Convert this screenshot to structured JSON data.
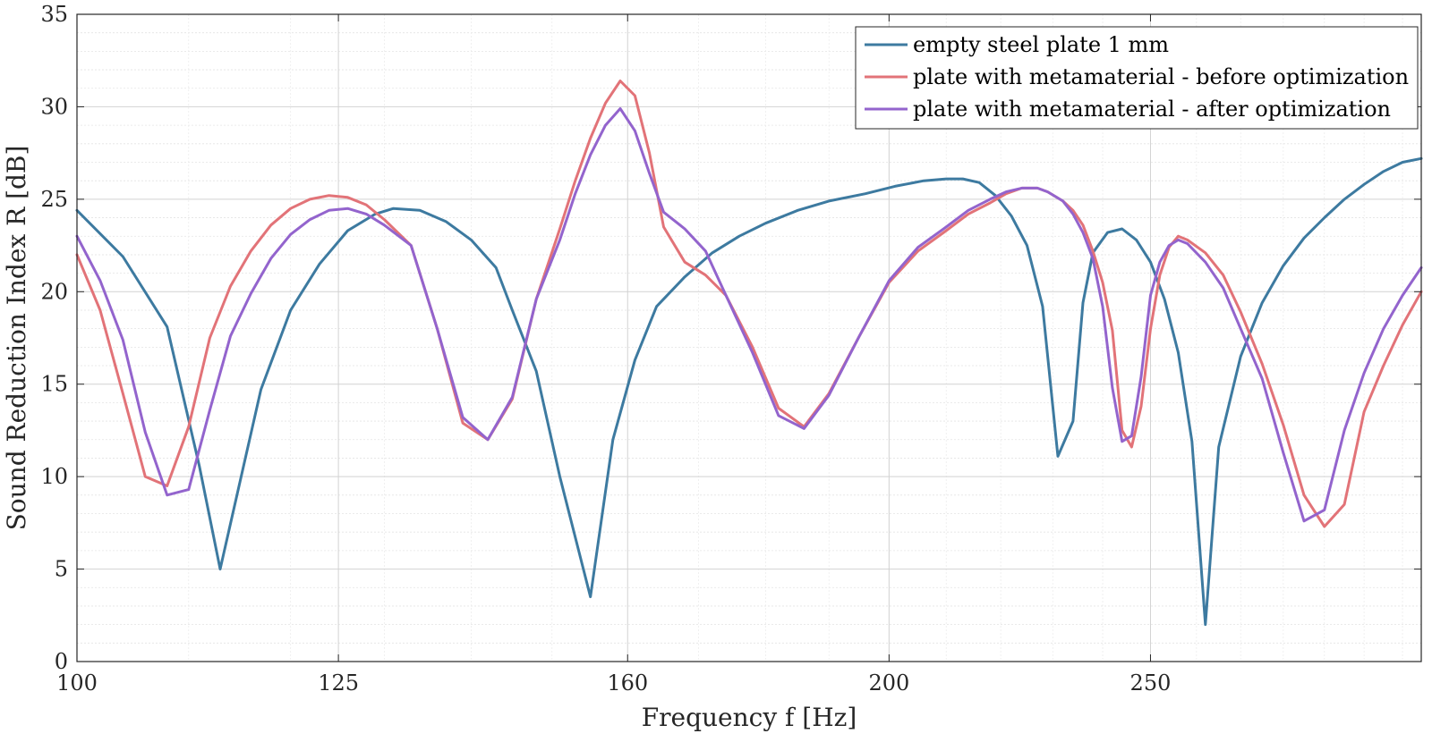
{
  "chart_data": {
    "type": "line",
    "title": "",
    "xlabel": "Frequency  f [Hz]",
    "ylabel": "Sound Reduction Index  R [dB]",
    "xscale": "log",
    "xlim": [
      100,
      315
    ],
    "ylim": [
      0,
      35
    ],
    "x_ticks": [
      100,
      125,
      160,
      200,
      250
    ],
    "x_tick_labels": [
      "100",
      "125",
      "160",
      "200",
      "250"
    ],
    "y_ticks": [
      0,
      5,
      10,
      15,
      20,
      25,
      30,
      35
    ],
    "y_tick_labels": [
      "0",
      "5",
      "10",
      "15",
      "20",
      "25",
      "30",
      "35"
    ],
    "grid": true,
    "legend_position": "top-right",
    "series": [
      {
        "name": "empty steel plate 1 mm",
        "color": "#3d7aa0",
        "x": [
          100,
          104,
          108,
          111,
          113,
          117,
          120,
          123,
          126,
          129,
          131,
          134,
          137,
          140,
          143,
          145,
          148,
          151,
          155,
          158,
          161,
          164,
          168,
          172,
          176,
          180,
          185,
          190,
          196,
          201,
          206,
          210,
          213,
          216,
          219,
          222,
          225,
          228,
          231,
          234,
          236,
          238,
          241,
          244,
          247,
          250,
          253,
          256,
          259,
          262,
          265,
          270,
          275,
          280,
          285,
          290,
          295,
          300,
          305,
          310,
          315
        ],
        "y": [
          24.4,
          21.9,
          18.1,
          10.6,
          5.0,
          14.7,
          19.0,
          21.5,
          23.3,
          24.2,
          24.5,
          24.4,
          23.8,
          22.8,
          21.3,
          19.0,
          15.7,
          10.0,
          3.5,
          12.0,
          16.3,
          19.2,
          20.8,
          22.1,
          23.0,
          23.7,
          24.4,
          24.9,
          25.3,
          25.7,
          26.0,
          26.1,
          26.1,
          25.9,
          25.2,
          24.1,
          22.5,
          19.2,
          11.1,
          13.0,
          19.4,
          22.1,
          23.2,
          23.4,
          22.8,
          21.6,
          19.6,
          16.7,
          11.9,
          2.0,
          11.6,
          16.5,
          19.4,
          21.4,
          22.9,
          24.0,
          25.0,
          25.8,
          26.5,
          27.0,
          27.2
        ]
      },
      {
        "name": "plate with metamaterial - before optimization",
        "color": "#e27378",
        "x": [
          100,
          102,
          104,
          106,
          108,
          110,
          112,
          114,
          116,
          118,
          120,
          122,
          124,
          126,
          128,
          130,
          133,
          136,
          139,
          142,
          145,
          148,
          151,
          153,
          155,
          157,
          159,
          161,
          163,
          165,
          168,
          171,
          174,
          178,
          182,
          186,
          190,
          195,
          200,
          205,
          210,
          214,
          218,
          221,
          224,
          227,
          229,
          232,
          234,
          236,
          238,
          240,
          242,
          244,
          246,
          248,
          250,
          252,
          254,
          256,
          258,
          262,
          266,
          270,
          275,
          280,
          285,
          290,
          295,
          300,
          305,
          310,
          315
        ],
        "y": [
          22.0,
          19.0,
          14.5,
          10.0,
          9.5,
          12.7,
          17.5,
          20.3,
          22.2,
          23.6,
          24.5,
          25.0,
          25.2,
          25.1,
          24.7,
          23.9,
          22.5,
          18.0,
          12.9,
          12.0,
          14.2,
          19.6,
          23.4,
          26.0,
          28.3,
          30.2,
          31.4,
          30.6,
          27.5,
          23.5,
          21.6,
          20.9,
          19.8,
          17.0,
          13.7,
          12.7,
          14.5,
          17.6,
          20.5,
          22.2,
          23.3,
          24.2,
          24.8,
          25.3,
          25.6,
          25.6,
          25.4,
          24.9,
          24.4,
          23.6,
          22.2,
          20.5,
          17.9,
          12.5,
          11.6,
          13.8,
          18.0,
          20.9,
          22.4,
          23.0,
          22.8,
          22.1,
          20.9,
          18.9,
          16.1,
          12.8,
          9.0,
          7.3,
          8.5,
          13.5,
          16.0,
          18.2,
          20.0
        ],
        "y_note": "values read off plot"
      },
      {
        "name": "plate with metamaterial - after optimization",
        "color": "#9364cd",
        "x": [
          100,
          102,
          104,
          106,
          108,
          110,
          112,
          114,
          116,
          118,
          120,
          122,
          124,
          126,
          128,
          130,
          133,
          136,
          139,
          142,
          145,
          148,
          151,
          153,
          155,
          157,
          159,
          161,
          163,
          165,
          168,
          171,
          174,
          178,
          182,
          186,
          190,
          195,
          200,
          205,
          210,
          214,
          218,
          221,
          224,
          227,
          229,
          232,
          234,
          236,
          238,
          240,
          242,
          244,
          246,
          248,
          250,
          252,
          254,
          256,
          258,
          262,
          266,
          270,
          275,
          280,
          285,
          290,
          295,
          300,
          305,
          310,
          315
        ],
        "y": [
          23.0,
          20.6,
          17.4,
          12.4,
          9.0,
          9.3,
          13.6,
          17.6,
          19.9,
          21.8,
          23.1,
          23.9,
          24.4,
          24.5,
          24.2,
          23.6,
          22.5,
          18.0,
          13.2,
          12.0,
          14.3,
          19.6,
          22.8,
          25.3,
          27.4,
          29.0,
          29.9,
          28.7,
          26.4,
          24.3,
          23.4,
          22.2,
          19.8,
          16.7,
          13.3,
          12.6,
          14.4,
          17.6,
          20.6,
          22.4,
          23.5,
          24.4,
          25.0,
          25.4,
          25.6,
          25.6,
          25.4,
          24.9,
          24.2,
          23.2,
          21.8,
          19.2,
          14.8,
          11.9,
          12.2,
          15.4,
          19.8,
          21.6,
          22.5,
          22.8,
          22.6,
          21.6,
          20.2,
          18.0,
          15.3,
          11.3,
          7.6,
          8.2,
          12.5,
          15.6,
          18.0,
          19.8,
          21.3
        ]
      }
    ]
  }
}
